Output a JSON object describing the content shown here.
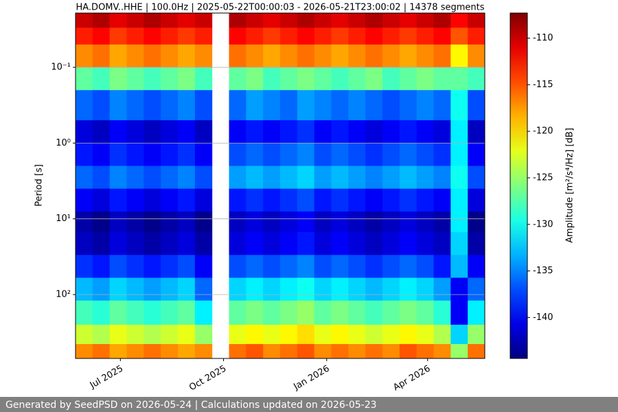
{
  "chart_data": {
    "type": "heatmap",
    "title": "HA.DOMV..HHE | 100.0Hz | 2025-05-22T00:00:03 - 2026-05-21T23:00:02 | 14378 segments",
    "ylabel": "Period [s]",
    "colorbar_label": "Amplitude [m²/s⁴/Hz] [dB]",
    "footer": "Generated by SeedPSD on 2026-05-24 | Calculations updated on 2026-05-23",
    "xlim": [
      "2025-05-22",
      "2026-05-22"
    ],
    "xticks": [
      {
        "value": "2025-07",
        "label": "Jul 2025"
      },
      {
        "value": "2025-10",
        "label": "Oct 2025"
      },
      {
        "value": "2026-01",
        "label": "Jan 2026"
      },
      {
        "value": "2026-04",
        "label": "Apr 2026"
      }
    ],
    "ylim": [
      0.0192,
      697
    ],
    "yscale": "log",
    "yinverted": true,
    "yticks": [
      {
        "value": 0.1,
        "label": "10⁻¹"
      },
      {
        "value": 1,
        "label": "10⁰"
      },
      {
        "value": 10,
        "label": "10¹"
      },
      {
        "value": 100,
        "label": "10²"
      }
    ],
    "grid": true,
    "colormap": "jet",
    "clim": [
      -144.4,
      -107.3
    ],
    "cticks": [
      -140,
      -135,
      -130,
      -125,
      -120,
      -115,
      -110
    ],
    "period_bins": [
      0.0192,
      0.03,
      0.05,
      0.1,
      0.2,
      0.5,
      1,
      2,
      4,
      8,
      15,
      30,
      60,
      120,
      250,
      450,
      697
    ],
    "values": [
      [
        -110,
        -109,
        -111,
        -110,
        -109,
        -110,
        -111,
        -110,
        null,
        -109,
        -110,
        -111,
        -110,
        -109,
        -110,
        -111,
        -110,
        -109,
        -110,
        -111,
        -110,
        -109,
        -112,
        -110
      ],
      [
        -113,
        -112,
        -114,
        -113,
        -112,
        -113,
        -114,
        -113,
        null,
        -112,
        -113,
        -114,
        -113,
        -112,
        -113,
        -114,
        -113,
        -112,
        -113,
        -114,
        -113,
        -112,
        -115,
        -113
      ],
      [
        -117,
        -116,
        -118,
        -117,
        -116,
        -117,
        -118,
        -117,
        null,
        -116,
        -117,
        -118,
        -117,
        -116,
        -117,
        -118,
        -117,
        -116,
        -117,
        -118,
        -117,
        -116,
        -121,
        -117
      ],
      [
        -127,
        -128,
        -126,
        -127,
        -128,
        -127,
        -126,
        -128,
        null,
        -127,
        -126,
        -128,
        -127,
        -126,
        -127,
        -128,
        -127,
        -126,
        -128,
        -127,
        -126,
        -127,
        -127,
        -128
      ],
      [
        -136,
        -137,
        -135,
        -136,
        -137,
        -136,
        -135,
        -137,
        null,
        -136,
        -134,
        -135,
        -136,
        -134,
        -135,
        -136,
        -135,
        -136,
        -137,
        -136,
        -135,
        -136,
        -130,
        -137
      ],
      [
        -141,
        -142,
        -140,
        -141,
        -142,
        -141,
        -140,
        -142,
        null,
        -140,
        -139,
        -140,
        -139,
        -138,
        -140,
        -139,
        -140,
        -141,
        -140,
        -139,
        -140,
        -141,
        -131,
        -142
      ],
      [
        -139,
        -140,
        -138,
        -139,
        -140,
        -139,
        -138,
        -140,
        null,
        -137,
        -136,
        -137,
        -136,
        -135,
        -137,
        -136,
        -137,
        -138,
        -137,
        -136,
        -137,
        -138,
        -131,
        -140
      ],
      [
        -136,
        -137,
        -135,
        -136,
        -137,
        -136,
        -135,
        -137,
        null,
        -134,
        -133,
        -134,
        -133,
        -132,
        -134,
        -133,
        -134,
        -135,
        -134,
        -133,
        -134,
        -135,
        -130,
        -137
      ],
      [
        -140,
        -141,
        -139,
        -140,
        -141,
        -140,
        -139,
        -141,
        null,
        -139,
        -138,
        -139,
        -138,
        -137,
        -139,
        -138,
        -139,
        -140,
        -139,
        -138,
        -139,
        -140,
        -131,
        -141
      ],
      [
        -143,
        -144,
        -142,
        -143,
        -144,
        -143,
        -142,
        -144,
        null,
        -142,
        -141,
        -142,
        -141,
        -140,
        -142,
        -141,
        -142,
        -143,
        -142,
        -141,
        -142,
        -143,
        -131,
        -144
      ],
      [
        -142,
        -143,
        -141,
        -142,
        -143,
        -142,
        -141,
        -143,
        null,
        -141,
        -140,
        -141,
        -140,
        -139,
        -141,
        -140,
        -141,
        -142,
        -141,
        -140,
        -141,
        -142,
        -132,
        -143
      ],
      [
        -138,
        -139,
        -137,
        -138,
        -139,
        -138,
        -137,
        -140,
        null,
        -137,
        -136,
        -137,
        -136,
        -135,
        -137,
        -136,
        -137,
        -138,
        -137,
        -136,
        -137,
        -139,
        -133,
        -140
      ],
      [
        -133,
        -134,
        -132,
        -133,
        -134,
        -133,
        -132,
        -136,
        null,
        -132,
        -131,
        -132,
        -131,
        -130,
        -132,
        -131,
        -132,
        -133,
        -132,
        -131,
        -132,
        -134,
        -140,
        -136
      ],
      [
        -128,
        -129,
        -127,
        -128,
        -129,
        -128,
        -127,
        -131,
        null,
        -127,
        -126,
        -127,
        -126,
        -125,
        -127,
        -126,
        -127,
        -128,
        -127,
        -126,
        -127,
        -129,
        -140,
        -131
      ],
      [
        -123,
        -124,
        -122,
        -123,
        -124,
        -123,
        -122,
        -125,
        null,
        -122,
        -121,
        -122,
        -121,
        -120,
        -122,
        -121,
        -122,
        -123,
        -122,
        -121,
        -122,
        -124,
        -132,
        -125
      ],
      [
        -117,
        -116,
        -118,
        -117,
        -116,
        -117,
        -118,
        -117,
        null,
        -116,
        -115,
        -117,
        -116,
        -115,
        -117,
        -116,
        -117,
        -116,
        -117,
        -115,
        -116,
        -117,
        -125,
        -116
      ]
    ]
  }
}
